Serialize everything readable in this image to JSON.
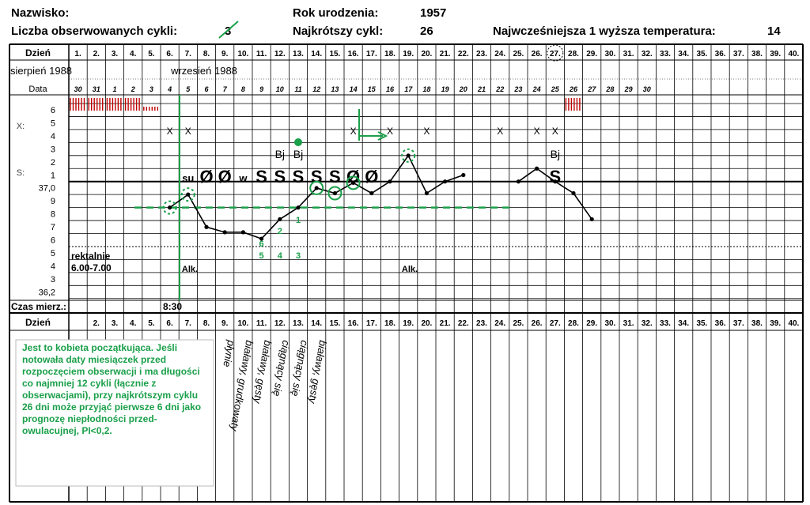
{
  "header": {
    "name_label": "Nazwisko:",
    "cycles_label": "Liczba obserwowanych cykli:",
    "cycles_value": "3",
    "birth_label": "Rok urodzenia:",
    "birth_value": "1957",
    "shortest_label": "Najkrótszy cykl:",
    "shortest_value": "26",
    "earliest_label": "Najwcześniejsza 1 wyższa temperatura:",
    "earliest_value": "14"
  },
  "chart": {
    "day_label": "Dzień",
    "days": [
      "1.",
      "2.",
      "3.",
      "4.",
      "5.",
      "6.",
      "7.",
      "8.",
      "9.",
      "10.",
      "11.",
      "12.",
      "13.",
      "14.",
      "15.",
      "16.",
      "17.",
      "18.",
      "19.",
      "20.",
      "21.",
      "22.",
      "23.",
      "24.",
      "25.",
      "26.",
      "27.",
      "28.",
      "29.",
      "30.",
      "31.",
      "32.",
      "33.",
      "34.",
      "35.",
      "36.",
      "37.",
      "38.",
      "39.",
      "40."
    ],
    "days_bottom": [
      "",
      "2.",
      "3.",
      "4.",
      "5.",
      "6.",
      "7.",
      "8.",
      "9.",
      "10.",
      "11.",
      "12.",
      "13.",
      "14.",
      "15.",
      "16.",
      "17.",
      "18.",
      "19.",
      "20.",
      "21.",
      "22.",
      "23.",
      "24.",
      "25.",
      "26.",
      "27.",
      "28.",
      "29.",
      "30.",
      "31.",
      "32.",
      "33.",
      "34.",
      "35.",
      "36.",
      "37.",
      "38.",
      "39.",
      "40."
    ],
    "month1": "sierpień 1988",
    "month2": "wrzesień 1988",
    "data_label": "Data",
    "dates": [
      "30",
      "31",
      "1",
      "2",
      "3",
      "4",
      "5",
      "6",
      "7",
      "8",
      "9",
      "10",
      "11",
      "12",
      "13",
      "14",
      "15",
      "16",
      "17",
      "18",
      "19",
      "20",
      "21",
      "22",
      "23",
      "24",
      "25",
      "26",
      "27",
      "28",
      "29",
      "30",
      "",
      "",
      "",
      "",
      "",
      "",
      "",
      ""
    ],
    "x_label": "X:",
    "s_label": "S:",
    "scale_labels": [
      "6",
      "5",
      "4",
      "3",
      "2",
      "1",
      "37,0",
      "9",
      "8",
      "7",
      "6",
      "5",
      "4",
      "3",
      "36,2"
    ],
    "x_marks": [
      6,
      7,
      16,
      18,
      20,
      24,
      26,
      27
    ],
    "sym_row_bj": [
      {
        "day": 12,
        "text": "Bj"
      },
      {
        "day": 13,
        "text": "Bj"
      },
      {
        "day": 27,
        "text": "Bj"
      }
    ],
    "sym_row_main": [
      {
        "day": 7,
        "text": "su",
        "size": "small"
      },
      {
        "day": 8,
        "text": "Ø",
        "size": "big"
      },
      {
        "day": 9,
        "text": "Ø",
        "size": "big"
      },
      {
        "day": 10,
        "text": "w",
        "size": "small"
      },
      {
        "day": 11,
        "text": "S",
        "size": "big"
      },
      {
        "day": 12,
        "text": "S",
        "size": "big"
      },
      {
        "day": 13,
        "text": "S",
        "size": "big"
      },
      {
        "day": 14,
        "text": "S",
        "size": "big"
      },
      {
        "day": 15,
        "text": "S",
        "size": "big"
      },
      {
        "day": 16,
        "text": "Ø",
        "size": "big"
      },
      {
        "day": 17,
        "text": "Ø",
        "size": "big"
      },
      {
        "day": 27,
        "text": "S",
        "size": "big"
      }
    ],
    "temperatures": [
      {
        "day": 6,
        "t": 36.8
      },
      {
        "day": 7,
        "t": 36.9
      },
      {
        "day": 8,
        "t": 36.65
      },
      {
        "day": 9,
        "t": 36.61
      },
      {
        "day": 10,
        "t": 36.61
      },
      {
        "day": 11,
        "t": 36.56
      },
      {
        "day": 12,
        "t": 36.71
      },
      {
        "day": 13,
        "t": 36.8
      },
      {
        "day": 14,
        "t": 36.95
      },
      {
        "day": 15,
        "t": 36.91
      },
      {
        "day": 16,
        "t": 36.99
      },
      {
        "day": 17,
        "t": 36.91
      },
      {
        "day": 18,
        "t": 37.0
      },
      {
        "day": 19,
        "t": 37.2
      },
      {
        "day": 20,
        "t": 36.91
      },
      {
        "day": 21,
        "t": 37.0
      },
      {
        "day": 22,
        "t": 37.05
      }
    ],
    "temperatures2": [
      {
        "day": 25,
        "t": 37.0
      },
      {
        "day": 26,
        "t": 37.1
      },
      {
        "day": 27,
        "t": 37.0
      },
      {
        "day": 28,
        "t": 36.91
      },
      {
        "day": 29,
        "t": 36.71
      }
    ],
    "circled_days": [
      6,
      7,
      14,
      15,
      16,
      19
    ],
    "low_numbers": [
      {
        "day": 11,
        "text": "6"
      },
      {
        "day": 12,
        "text": "5"
      },
      {
        "day": 13,
        "text": "4"
      },
      {
        "day": 14,
        "text": "3"
      },
      {
        "day": 14,
        "text": "2"
      },
      {
        "day": 15,
        "text": "1"
      }
    ],
    "rectal_label1": "rektalnie",
    "rectal_label2": "6.00-7.00",
    "alk_label": "Alk.",
    "time_label": "Czas mierz.:",
    "time_value": "8:30",
    "mucus": [
      {
        "day": 9,
        "text": "płynie"
      },
      {
        "day": 10,
        "text": "białawy, grudkowaty"
      },
      {
        "day": 11,
        "text": "białawy, gęsty"
      },
      {
        "day": 12,
        "text": "ciągnący się"
      },
      {
        "day": 13,
        "text": "ciągnący się"
      },
      {
        "day": 14,
        "text": "białawy, gęsty"
      }
    ],
    "note": "Jest to kobieta początkująca. Jeśli notowała daty miesiączek przed rozpoczęciem obserwacji i ma długości co najmniej 12 cykli (łącznie z obserwacjami), przy najkrótszym cyklu 26 dni może przyjąć pierwsze 6 dni jako prognozę niepłodności przed-owulacujnej, PI<0,2.",
    "colors": {
      "green": "#1aa04a",
      "red": "#c00000",
      "line": "#000000"
    }
  }
}
